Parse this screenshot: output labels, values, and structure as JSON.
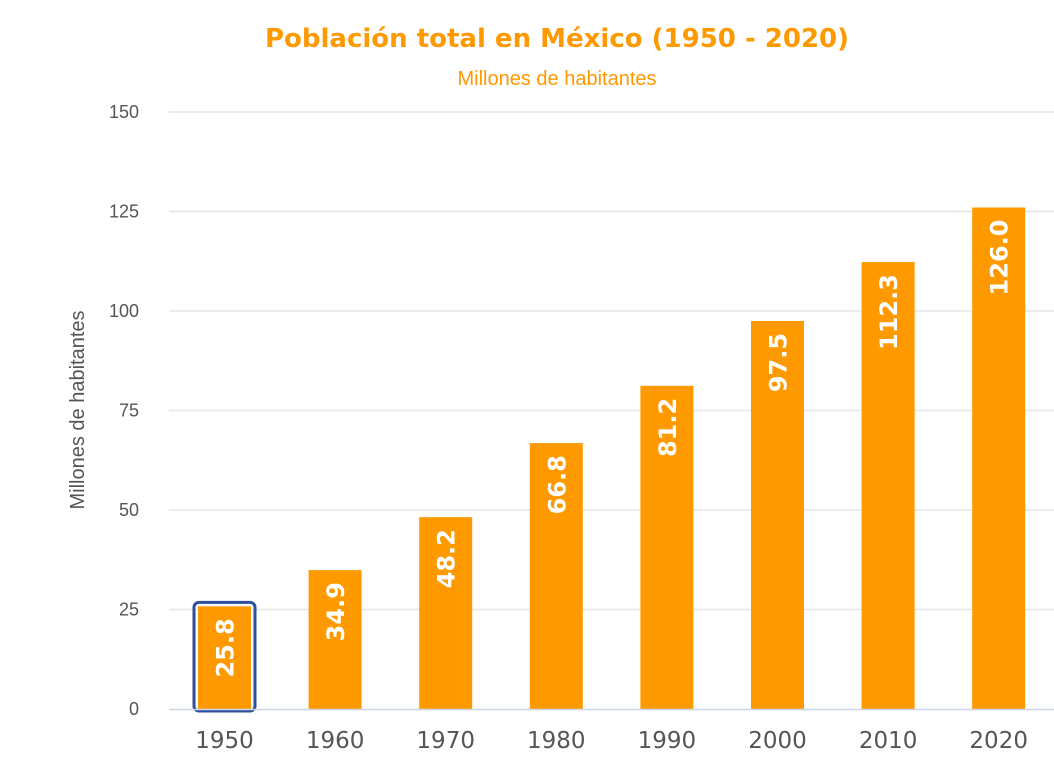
{
  "chart_data": {
    "type": "bar",
    "title": "Población total en México (1950 - 2020)",
    "subtitle": "Millones de habitantes",
    "xlabel": "",
    "ylabel": "Millones de habitantes",
    "categories": [
      "1950",
      "1960",
      "1970",
      "1980",
      "1990",
      "2000",
      "2010",
      "2020"
    ],
    "values": [
      25.8,
      34.9,
      48.2,
      66.8,
      81.2,
      97.5,
      112.3,
      126.0
    ],
    "value_labels": [
      "25.8",
      "34.9",
      "48.2",
      "66.8",
      "81.2",
      "97.5",
      "112.3",
      "126.0"
    ],
    "ylim": [
      0,
      150
    ],
    "yticks": [
      0,
      25,
      50,
      75,
      100,
      125,
      150
    ],
    "grid": true,
    "legend": "none",
    "selected_category": "1950",
    "colors": {
      "bar": "#ff9900",
      "title": "#ff9900",
      "selection": "#2e4f9e",
      "grid": "#e6e6e6",
      "axis": "#ccd6eb"
    }
  }
}
